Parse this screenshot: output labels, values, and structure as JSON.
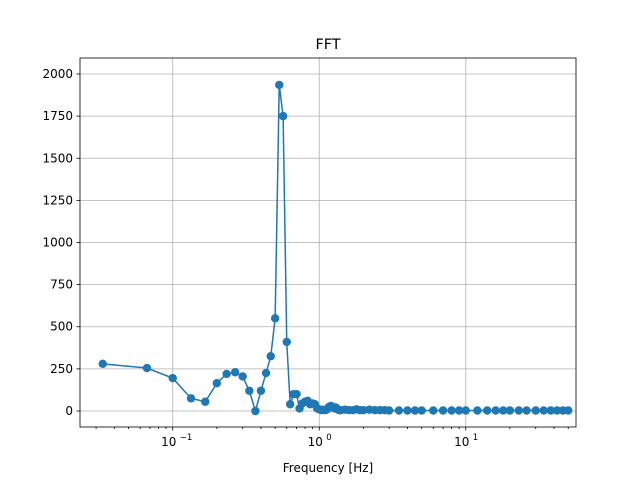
{
  "chart_data": {
    "type": "line",
    "title": "FFT",
    "xlabel": "Frequency [Hz]",
    "ylabel": "",
    "xscale": "log",
    "xlim": [
      0.0233,
      56.5
    ],
    "ylim": [
      -95,
      2095
    ],
    "grid": true,
    "marker": "circle",
    "color": "#1f77b4",
    "yticks": [
      0,
      250,
      500,
      750,
      1000,
      1250,
      1500,
      1750,
      2000
    ],
    "yticklabels": [
      "0",
      "250",
      "500",
      "750",
      "1000",
      "1250",
      "1500",
      "1750",
      "2000"
    ],
    "xticks": [
      0.1,
      1,
      10
    ],
    "xticklabels": [
      {
        "base": "10",
        "exp": "−1"
      },
      {
        "base": "10",
        "exp": "0"
      },
      {
        "base": "10",
        "exp": "1"
      }
    ],
    "series": [
      {
        "x": [
          0.0333,
          0.0667,
          0.1,
          0.1333,
          0.1667,
          0.2,
          0.2333,
          0.2667,
          0.3,
          0.3333,
          0.3667,
          0.4,
          0.4333,
          0.4667,
          0.5,
          0.5333,
          0.5667,
          0.6,
          0.6333,
          0.6667,
          0.7,
          0.7333,
          0.7667,
          0.8,
          0.8333,
          0.8667,
          0.9,
          0.9333,
          0.9667,
          1.0,
          1.0333,
          1.0667,
          1.1,
          1.1333,
          1.1667,
          1.2,
          1.2333,
          1.2667,
          1.3,
          1.3333,
          1.3667,
          1.4,
          1.5,
          1.6,
          1.7,
          1.8,
          1.9,
          2.0,
          2.2,
          2.4,
          2.6,
          2.8,
          3.0,
          3.5,
          4.0,
          4.5,
          5.0,
          6.0,
          7.0,
          8.0,
          9.0,
          10.0,
          12.0,
          14.0,
          16.0,
          18.0,
          20.0,
          23.0,
          26.0,
          30.0,
          34.0,
          38.0,
          42.0,
          46.0,
          50.0
        ],
        "y": [
          280,
          255,
          195,
          75,
          55,
          165,
          220,
          230,
          205,
          120,
          0,
          120,
          225,
          325,
          550,
          1935,
          1750,
          410,
          40,
          100,
          100,
          15,
          45,
          55,
          60,
          40,
          45,
          40,
          15,
          10,
          5,
          8,
          5,
          10,
          25,
          30,
          25,
          15,
          20,
          10,
          5,
          5,
          8,
          5,
          5,
          10,
          5,
          5,
          8,
          5,
          5,
          5,
          3,
          3,
          3,
          3,
          3,
          3,
          3,
          3,
          3,
          3,
          3,
          3,
          3,
          3,
          3,
          3,
          3,
          3,
          3,
          3,
          3,
          3,
          3
        ]
      }
    ]
  }
}
